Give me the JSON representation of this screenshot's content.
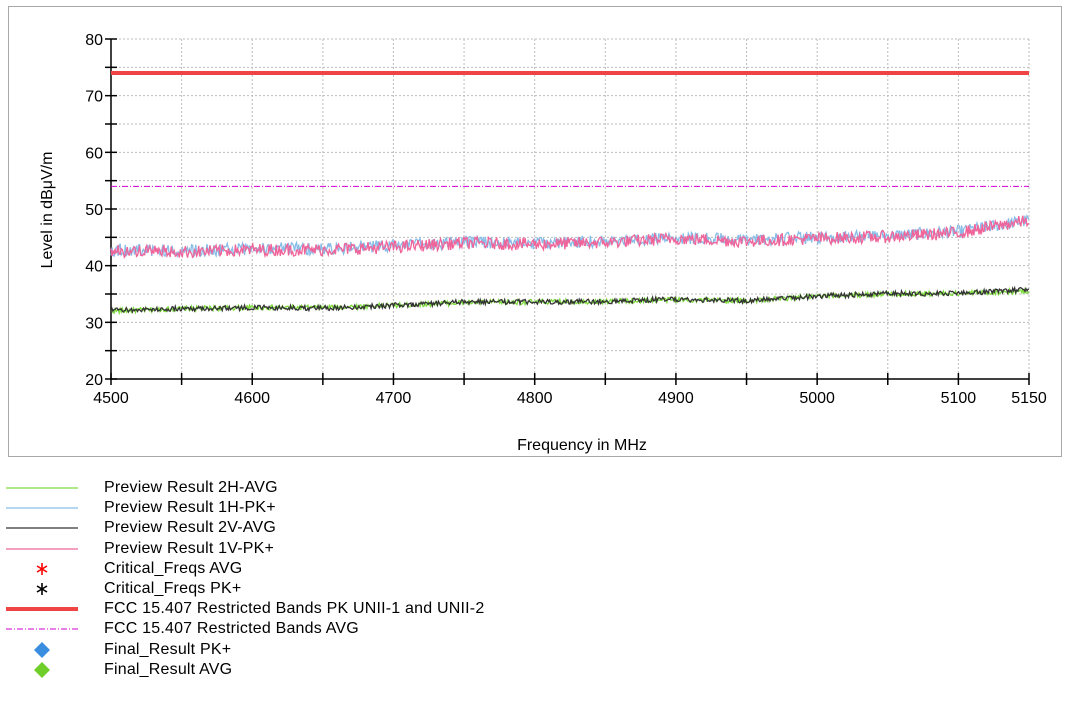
{
  "chart_data": {
    "type": "line",
    "xlabel": "Frequency in MHz",
    "ylabel": "Level in dBμV/m",
    "xlim": [
      4500,
      5150
    ],
    "ylim": [
      20,
      80
    ],
    "x_ticks": [
      4500,
      4600,
      4700,
      4800,
      4900,
      5000,
      5100,
      5150
    ],
    "x_tick_labels": [
      "4500",
      "4600",
      "4700",
      "4800",
      "4900",
      "5000",
      "5100",
      "5150"
    ],
    "y_ticks": [
      20,
      30,
      40,
      50,
      60,
      70,
      80
    ],
    "y_tick_labels": [
      "20",
      "30",
      "40",
      "50",
      "60",
      "70",
      "80"
    ],
    "grid": true,
    "legend_position": "below",
    "series": [
      {
        "name": "Preview Result 2H-AVG",
        "style": "line",
        "color": "#7ddc3c",
        "x": [
          4500,
          4550,
          4600,
          4650,
          4700,
          4750,
          4800,
          4850,
          4900,
          4950,
          5000,
          5050,
          5100,
          5150
        ],
        "y": [
          32.0,
          32.4,
          32.6,
          32.6,
          33.0,
          33.5,
          33.6,
          33.7,
          34.0,
          33.8,
          34.6,
          35.0,
          35.1,
          35.5
        ]
      },
      {
        "name": "Preview Result 1H-PK+",
        "style": "line",
        "color": "#88bde8",
        "x": [
          4500,
          4550,
          4600,
          4650,
          4700,
          4750,
          4800,
          4850,
          4900,
          4950,
          5000,
          5050,
          5100,
          5150
        ],
        "y": [
          42.8,
          42.6,
          43.0,
          43.0,
          43.5,
          44.2,
          44.0,
          44.3,
          45.0,
          44.5,
          45.0,
          45.3,
          46.0,
          48.0
        ]
      },
      {
        "name": "Preview Result 2V-AVG",
        "style": "line",
        "color": "#333333",
        "x": [
          4500,
          4550,
          4600,
          4650,
          4700,
          4750,
          4800,
          4850,
          4900,
          4950,
          5000,
          5050,
          5100,
          5150
        ],
        "y": [
          32.1,
          32.4,
          32.6,
          32.5,
          33.0,
          33.6,
          33.6,
          33.7,
          34.1,
          33.8,
          34.6,
          35.1,
          35.1,
          35.8
        ]
      },
      {
        "name": "Preview Result 1V-PK+",
        "style": "line",
        "color": "#f0649a",
        "x": [
          4500,
          4550,
          4600,
          4650,
          4700,
          4750,
          4800,
          4850,
          4900,
          4950,
          5000,
          5050,
          5100,
          5150
        ],
        "y": [
          42.6,
          42.4,
          42.8,
          42.8,
          43.3,
          44.0,
          43.8,
          44.1,
          44.8,
          44.3,
          44.8,
          45.1,
          45.8,
          48.0
        ]
      },
      {
        "name": "Critical_Freqs AVG",
        "style": "marker",
        "marker": "asterisk",
        "color": "#ff0000",
        "x": [],
        "y": []
      },
      {
        "name": "Critical_Freqs PK+",
        "style": "marker",
        "marker": "asterisk",
        "color": "#000000",
        "x": [],
        "y": []
      },
      {
        "name": "FCC 15.407 Restricted Bands PK UNII-1 and UNII-2",
        "style": "thick-line",
        "color": "#ee4444",
        "x": [
          4500,
          5150
        ],
        "y": [
          74,
          74
        ]
      },
      {
        "name": "FCC 15.407 Restricted Bands AVG",
        "style": "dashdot",
        "color": "#d000d0",
        "x": [
          4500,
          5150
        ],
        "y": [
          54,
          54
        ]
      },
      {
        "name": "Final_Result PK+",
        "style": "marker",
        "marker": "diamond",
        "color": "#3a8ee0",
        "x": [],
        "y": []
      },
      {
        "name": "Final_Result AVG",
        "style": "marker",
        "marker": "diamond",
        "color": "#6fce2a",
        "x": [],
        "y": []
      }
    ]
  }
}
